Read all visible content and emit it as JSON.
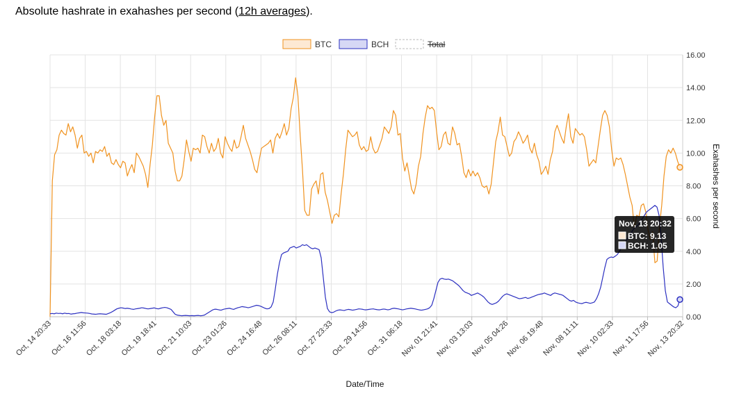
{
  "heading": {
    "prefix": "Absolute hashrate in exahashes per second (",
    "link": "12h averages",
    "suffix": ")."
  },
  "chart_data": {
    "type": "line",
    "xlabel": "Date/Time",
    "ylabel": "Exahashes per second",
    "ylim": [
      0,
      16
    ],
    "y_ticks": [
      "0.00",
      "2.00",
      "4.00",
      "6.00",
      "8.00",
      "10.00",
      "12.00",
      "14.00",
      "16.00"
    ],
    "x_ticks": [
      "Oct, 14 20:33",
      "Oct, 16 11:56",
      "Oct, 18 03:18",
      "Oct, 19 18:41",
      "Oct, 21 10:03",
      "Oct, 23 01:26",
      "Oct, 24 16:48",
      "Oct, 26 08:11",
      "Oct, 27 23:33",
      "Oct, 29 14:56",
      "Oct, 31 06:18",
      "Nov, 01 21:41",
      "Nov, 03 13:03",
      "Nov, 05 04:26",
      "Nov, 06 19:48",
      "Nov, 08 11:11",
      "Nov, 10 02:33",
      "Nov, 11 17:56",
      "Nov, 13 20:32"
    ],
    "grid": true,
    "legend_position": "top-center",
    "series": [
      {
        "name": "BTC",
        "color": "#f0921e",
        "fill": "#fde9d4",
        "values": [
          0,
          8.3,
          9.9,
          10.2,
          11.1,
          11.4,
          11.2,
          11.1,
          11.8,
          11.3,
          11.6,
          11.1,
          10.3,
          10.9,
          11.1,
          10.0,
          10.1,
          9.8,
          10.0,
          9.4,
          10.1,
          10.0,
          10.2,
          10.1,
          10.4,
          9.8,
          10.0,
          9.4,
          9.3,
          9.6,
          9.3,
          9.1,
          9.5,
          9.4,
          8.6,
          9.0,
          9.3,
          8.8,
          10.0,
          9.8,
          9.5,
          9.2,
          8.7,
          7.9,
          9.3,
          10.5,
          12.2,
          13.5,
          13.5,
          12.3,
          11.7,
          12.0,
          10.6,
          10.3,
          10.0,
          8.9,
          8.3,
          8.3,
          8.6,
          9.6,
          10.8,
          10.1,
          9.5,
          10.3,
          10.2,
          10.3,
          10.0,
          11.1,
          11.0,
          10.4,
          10.0,
          10.6,
          10.1,
          10.3,
          10.9,
          10.0,
          9.7,
          11.0,
          10.6,
          10.3,
          10.1,
          10.8,
          10.3,
          10.4,
          11.0,
          11.7,
          10.9,
          10.5,
          10.1,
          9.6,
          9.0,
          8.8,
          9.6,
          10.3,
          10.4,
          10.5,
          10.6,
          10.8,
          10.0,
          10.9,
          11.2,
          10.9,
          11.3,
          11.8,
          11.1,
          11.5,
          12.7,
          13.4,
          14.6,
          13.5,
          11.1,
          9.0,
          6.5,
          6.2,
          6.2,
          7.8,
          8.1,
          8.3,
          7.5,
          8.7,
          8.8,
          7.6,
          7.1,
          6.4,
          5.7,
          6.2,
          6.3,
          6.1,
          7.5,
          8.7,
          10.2,
          11.4,
          11.2,
          11.0,
          11.1,
          11.3,
          10.5,
          10.2,
          10.4,
          10.1,
          10.2,
          11.0,
          10.3,
          10.0,
          10.1,
          10.5,
          10.9,
          11.6,
          11.4,
          11.2,
          11.6,
          12.6,
          12.3,
          11.1,
          11.2,
          9.7,
          8.9,
          9.4,
          8.6,
          7.8,
          7.5,
          8.1,
          9.2,
          9.8,
          11.2,
          12.2,
          12.9,
          12.7,
          12.8,
          12.6,
          11.3,
          10.2,
          10.4,
          11.1,
          11.3,
          10.6,
          10.5,
          11.6,
          11.2,
          10.5,
          10.6,
          9.8,
          8.8,
          8.5,
          9.0,
          8.6,
          8.9,
          8.6,
          8.8,
          8.5,
          8.0,
          7.9,
          8.0,
          7.5,
          8.1,
          9.4,
          10.7,
          11.3,
          12.2,
          11.1,
          11.0,
          10.4,
          9.8,
          10.0,
          10.7,
          10.9,
          11.3,
          11.0,
          10.6,
          10.8,
          11.1,
          10.3,
          10.0,
          10.6,
          9.9,
          9.5,
          8.7,
          8.9,
          9.2,
          8.7,
          9.6,
          10.1,
          11.3,
          11.7,
          11.3,
          10.9,
          10.6,
          11.6,
          12.4,
          11.0,
          10.6,
          11.5,
          11.3,
          11.1,
          11.2,
          11.0,
          10.2,
          9.2,
          9.4,
          9.6,
          9.4,
          10.4,
          11.4,
          12.3,
          12.6,
          12.3,
          11.6,
          10.2,
          9.2,
          9.7,
          9.6,
          9.7,
          9.3,
          8.7,
          8.0,
          7.3,
          6.8,
          5.4,
          6.2,
          6.1,
          6.8,
          6.9,
          6.4,
          5.3,
          4.7,
          5.2,
          3.3,
          3.4,
          5.5,
          6.8,
          8.6,
          9.8,
          10.2,
          10.0,
          10.3,
          10.0,
          9.5,
          9.13
        ]
      },
      {
        "name": "BCH",
        "color": "#2b2fc0",
        "fill": "#d6d8f5",
        "values": [
          0.18,
          0.2,
          0.18,
          0.22,
          0.2,
          0.21,
          0.18,
          0.22,
          0.19,
          0.2,
          0.16,
          0.18,
          0.19,
          0.22,
          0.24,
          0.26,
          0.24,
          0.23,
          0.22,
          0.2,
          0.17,
          0.16,
          0.15,
          0.17,
          0.18,
          0.17,
          0.16,
          0.15,
          0.2,
          0.25,
          0.32,
          0.4,
          0.48,
          0.52,
          0.55,
          0.53,
          0.5,
          0.52,
          0.5,
          0.47,
          0.45,
          0.48,
          0.5,
          0.52,
          0.55,
          0.53,
          0.5,
          0.48,
          0.5,
          0.52,
          0.54,
          0.5,
          0.48,
          0.52,
          0.55,
          0.57,
          0.55,
          0.5,
          0.45,
          0.3,
          0.15,
          0.1,
          0.08,
          0.06,
          0.07,
          0.08,
          0.07,
          0.06,
          0.07,
          0.06,
          0.07,
          0.08,
          0.06,
          0.07,
          0.1,
          0.18,
          0.26,
          0.34,
          0.42,
          0.46,
          0.45,
          0.42,
          0.4,
          0.45,
          0.48,
          0.5,
          0.52,
          0.48,
          0.45,
          0.5,
          0.55,
          0.58,
          0.62,
          0.6,
          0.58,
          0.55,
          0.58,
          0.62,
          0.66,
          0.7,
          0.68,
          0.64,
          0.58,
          0.52,
          0.48,
          0.5,
          0.6,
          0.9,
          1.7,
          2.6,
          3.3,
          3.8,
          3.9,
          3.95,
          4.0,
          4.2,
          4.25,
          4.3,
          4.2,
          4.25,
          4.3,
          4.4,
          4.35,
          4.4,
          4.3,
          4.2,
          4.15,
          4.2,
          4.15,
          4.1,
          3.6,
          2.4,
          1.2,
          0.5,
          0.3,
          0.25,
          0.28,
          0.35,
          0.4,
          0.42,
          0.4,
          0.38,
          0.42,
          0.45,
          0.43,
          0.4,
          0.42,
          0.45,
          0.48,
          0.47,
          0.45,
          0.42,
          0.43,
          0.45,
          0.47,
          0.48,
          0.45,
          0.43,
          0.42,
          0.45,
          0.47,
          0.45,
          0.42,
          0.45,
          0.5,
          0.52,
          0.5,
          0.48,
          0.45,
          0.42,
          0.45,
          0.48,
          0.5,
          0.52,
          0.5,
          0.48,
          0.45,
          0.42,
          0.4,
          0.42,
          0.45,
          0.48,
          0.55,
          0.7,
          1.1,
          1.6,
          2.1,
          2.3,
          2.35,
          2.3,
          2.28,
          2.3,
          2.25,
          2.2,
          2.1,
          2.0,
          1.9,
          1.75,
          1.6,
          1.5,
          1.45,
          1.4,
          1.3,
          1.35,
          1.4,
          1.45,
          1.38,
          1.3,
          1.2,
          1.05,
          0.9,
          0.8,
          0.75,
          0.8,
          0.85,
          0.95,
          1.1,
          1.25,
          1.35,
          1.4,
          1.35,
          1.3,
          1.25,
          1.2,
          1.15,
          1.1,
          1.12,
          1.15,
          1.18,
          1.12,
          1.15,
          1.2,
          1.25,
          1.3,
          1.35,
          1.38,
          1.4,
          1.45,
          1.4,
          1.35,
          1.3,
          1.4,
          1.45,
          1.42,
          1.38,
          1.35,
          1.3,
          1.2,
          1.1,
          1.0,
          0.95,
          1.0,
          0.9,
          0.85,
          0.82,
          0.8,
          0.85,
          0.88,
          0.85,
          0.82,
          0.85,
          0.9,
          1.1,
          1.4,
          1.8,
          2.4,
          3.0,
          3.5,
          3.6,
          3.65,
          3.62,
          3.7,
          3.8,
          4.0,
          4.2,
          4.4,
          4.6,
          4.8,
          5.0,
          5.2,
          5.4,
          5.5,
          5.6,
          5.8,
          6.0,
          6.2,
          6.4,
          6.5,
          6.6,
          6.7,
          6.8,
          6.7,
          6.2,
          4.8,
          3.0,
          1.6,
          0.9,
          0.8,
          0.7,
          0.6,
          0.55,
          0.65,
          1.05
        ]
      },
      {
        "name": "Total",
        "color": "#999999",
        "hidden": true,
        "values": []
      }
    ],
    "tooltip": {
      "title": "Nov, 13 20:32",
      "rows": [
        {
          "series": "BTC",
          "text": "BTC: 9.13"
        },
        {
          "series": "BCH",
          "text": "BCH: 1.05"
        }
      ]
    }
  }
}
